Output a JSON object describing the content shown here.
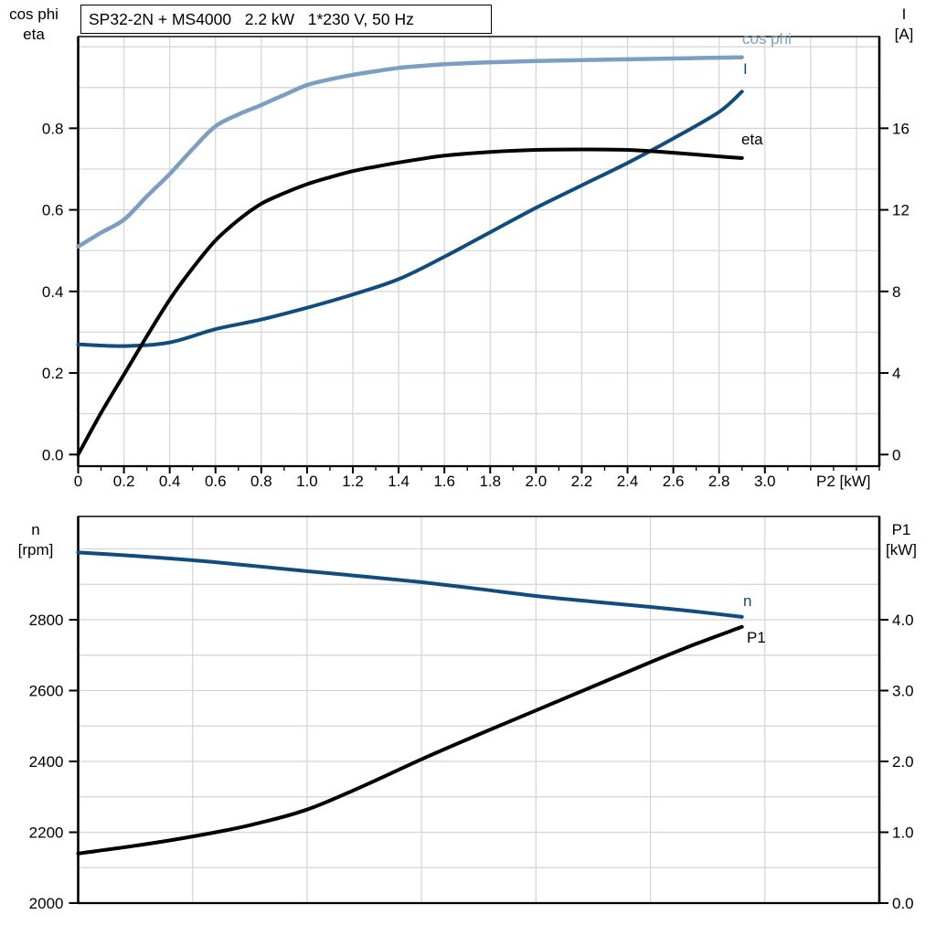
{
  "app": {
    "kind": "pump-motor-performance-curves"
  },
  "title_box": "SP32-2N + MS4000   2.2 kW   1*230 V, 50 Hz",
  "colors": {
    "light_blue": "#7C9EC1",
    "dark_blue": "#104D7E",
    "black": "#000000",
    "grid": "#D3D3D3",
    "frame": "#1A1A1A",
    "background": "#FFFFFF"
  },
  "chart_data": [
    {
      "type": "line",
      "title": "SP32-2N + MS4000   2.2 kW   1*230 V, 50 Hz",
      "x_axis": {
        "label": "P2 [kW]",
        "min": 0,
        "max": 3.5,
        "grid_step": 0.2,
        "minor_tick_step": 0.1,
        "major_tick_values": [
          0,
          0.2,
          0.4,
          0.6,
          0.8,
          1.0,
          1.2,
          1.4,
          1.6,
          1.8,
          2.0,
          2.2,
          2.4,
          2.6,
          2.8,
          3.0
        ],
        "major_tick_labels": [
          "0",
          "0.2",
          "0.4",
          "0.6",
          "0.8",
          "1.0",
          "1.2",
          "1.4",
          "1.6",
          "1.8",
          "2.0",
          "2.2",
          "2.4",
          "2.6",
          "2.8",
          "3.0"
        ]
      },
      "y_left": {
        "header": [
          "cos phi",
          "eta"
        ],
        "min": 0,
        "max": 1.0,
        "grid_step": 0.1,
        "tick_values": [
          0,
          0.2,
          0.4,
          0.6,
          0.8
        ],
        "tick_labels": [
          "0.0",
          "0.2",
          "0.4",
          "0.6",
          "0.8"
        ]
      },
      "y_right": {
        "header": [
          "I",
          "[A]"
        ],
        "min": 0,
        "max": 20,
        "tick_values": [
          0,
          4,
          8,
          12,
          16
        ],
        "tick_labels": [
          "0",
          "4",
          "8",
          "12",
          "16"
        ]
      },
      "legend_position": "end-of-line-labels",
      "grid": true,
      "series": [
        {
          "name": "cos phi",
          "axis": "left",
          "color": "light_blue",
          "points": [
            [
              0,
              0.51
            ],
            [
              0.1,
              0.544
            ],
            [
              0.2,
              0.576
            ],
            [
              0.3,
              0.633
            ],
            [
              0.4,
              0.688
            ],
            [
              0.5,
              0.749
            ],
            [
              0.6,
              0.805
            ],
            [
              0.7,
              0.834
            ],
            [
              0.8,
              0.857
            ],
            [
              0.9,
              0.882
            ],
            [
              1.0,
              0.906
            ],
            [
              1.1,
              0.92
            ],
            [
              1.2,
              0.931
            ],
            [
              1.3,
              0.94
            ],
            [
              1.4,
              0.948
            ],
            [
              1.5,
              0.953
            ],
            [
              1.6,
              0.957
            ],
            [
              1.8,
              0.962
            ],
            [
              2.0,
              0.965
            ],
            [
              2.2,
              0.967
            ],
            [
              2.4,
              0.969
            ],
            [
              2.6,
              0.971
            ],
            [
              2.8,
              0.973
            ],
            [
              2.9,
              0.974
            ]
          ]
        },
        {
          "name": "I",
          "axis": "right",
          "color": "dark_blue",
          "points": [
            [
              0,
              5.4
            ],
            [
              0.2,
              5.32
            ],
            [
              0.4,
              5.5
            ],
            [
              0.6,
              6.15
            ],
            [
              0.8,
              6.62
            ],
            [
              1.0,
              7.2
            ],
            [
              1.2,
              7.85
            ],
            [
              1.4,
              8.6
            ],
            [
              1.6,
              9.7
            ],
            [
              1.8,
              10.9
            ],
            [
              2.0,
              12.1
            ],
            [
              2.2,
              13.2
            ],
            [
              2.4,
              14.3
            ],
            [
              2.6,
              15.5
            ],
            [
              2.8,
              16.8
            ],
            [
              2.9,
              17.8
            ]
          ]
        },
        {
          "name": "eta",
          "axis": "left",
          "color": "black",
          "points": [
            [
              0,
              0.0
            ],
            [
              0.1,
              0.102
            ],
            [
              0.2,
              0.196
            ],
            [
              0.3,
              0.29
            ],
            [
              0.4,
              0.38
            ],
            [
              0.5,
              0.457
            ],
            [
              0.6,
              0.525
            ],
            [
              0.7,
              0.575
            ],
            [
              0.8,
              0.615
            ],
            [
              0.9,
              0.641
            ],
            [
              1.0,
              0.663
            ],
            [
              1.1,
              0.68
            ],
            [
              1.2,
              0.695
            ],
            [
              1.3,
              0.706
            ],
            [
              1.4,
              0.716
            ],
            [
              1.5,
              0.725
            ],
            [
              1.6,
              0.733
            ],
            [
              1.8,
              0.742
            ],
            [
              2.0,
              0.747
            ],
            [
              2.2,
              0.748
            ],
            [
              2.4,
              0.747
            ],
            [
              2.6,
              0.74
            ],
            [
              2.8,
              0.731
            ],
            [
              2.9,
              0.727
            ]
          ]
        }
      ]
    },
    {
      "type": "line",
      "title": "",
      "x_axis": {
        "label": "",
        "min": 0,
        "max": 3.5,
        "grid_step": 0.5
      },
      "y_left": {
        "header": [
          "n",
          "[rpm]"
        ],
        "min": 2000,
        "max": 3100,
        "grid_step": 100,
        "tick_values": [
          2000,
          2200,
          2400,
          2600,
          2800
        ],
        "tick_labels": [
          "2000",
          "2200",
          "2400",
          "2600",
          "2800"
        ]
      },
      "y_right": {
        "header": [
          "P1",
          "[kW]"
        ],
        "min": 0,
        "max": 5.5,
        "grid_step": 0.5,
        "tick_values": [
          0,
          1,
          2,
          3,
          4
        ],
        "tick_labels": [
          "0.0",
          "1.0",
          "2.0",
          "3.0",
          "4.0"
        ]
      },
      "legend_position": "end-of-line-labels",
      "grid": true,
      "series": [
        {
          "name": "n",
          "axis": "left",
          "color": "dark_blue",
          "points": [
            [
              0,
              2990
            ],
            [
              0.25,
              2980
            ],
            [
              0.5,
              2968
            ],
            [
              0.75,
              2953
            ],
            [
              1.0,
              2937
            ],
            [
              1.25,
              2922
            ],
            [
              1.5,
              2906
            ],
            [
              1.75,
              2887
            ],
            [
              2.0,
              2867
            ],
            [
              2.25,
              2851
            ],
            [
              2.5,
              2836
            ],
            [
              2.7,
              2823
            ],
            [
              2.9,
              2808
            ]
          ]
        },
        {
          "name": "P1",
          "axis": "right",
          "color": "black",
          "points": [
            [
              0,
              0.7
            ],
            [
              0.25,
              0.81
            ],
            [
              0.5,
              0.94
            ],
            [
              0.75,
              1.1
            ],
            [
              1.0,
              1.32
            ],
            [
              1.25,
              1.66
            ],
            [
              1.5,
              2.03
            ],
            [
              1.75,
              2.38
            ],
            [
              2.0,
              2.72
            ],
            [
              2.25,
              3.06
            ],
            [
              2.5,
              3.4
            ],
            [
              2.7,
              3.66
            ],
            [
              2.9,
              3.9
            ]
          ]
        }
      ]
    }
  ]
}
